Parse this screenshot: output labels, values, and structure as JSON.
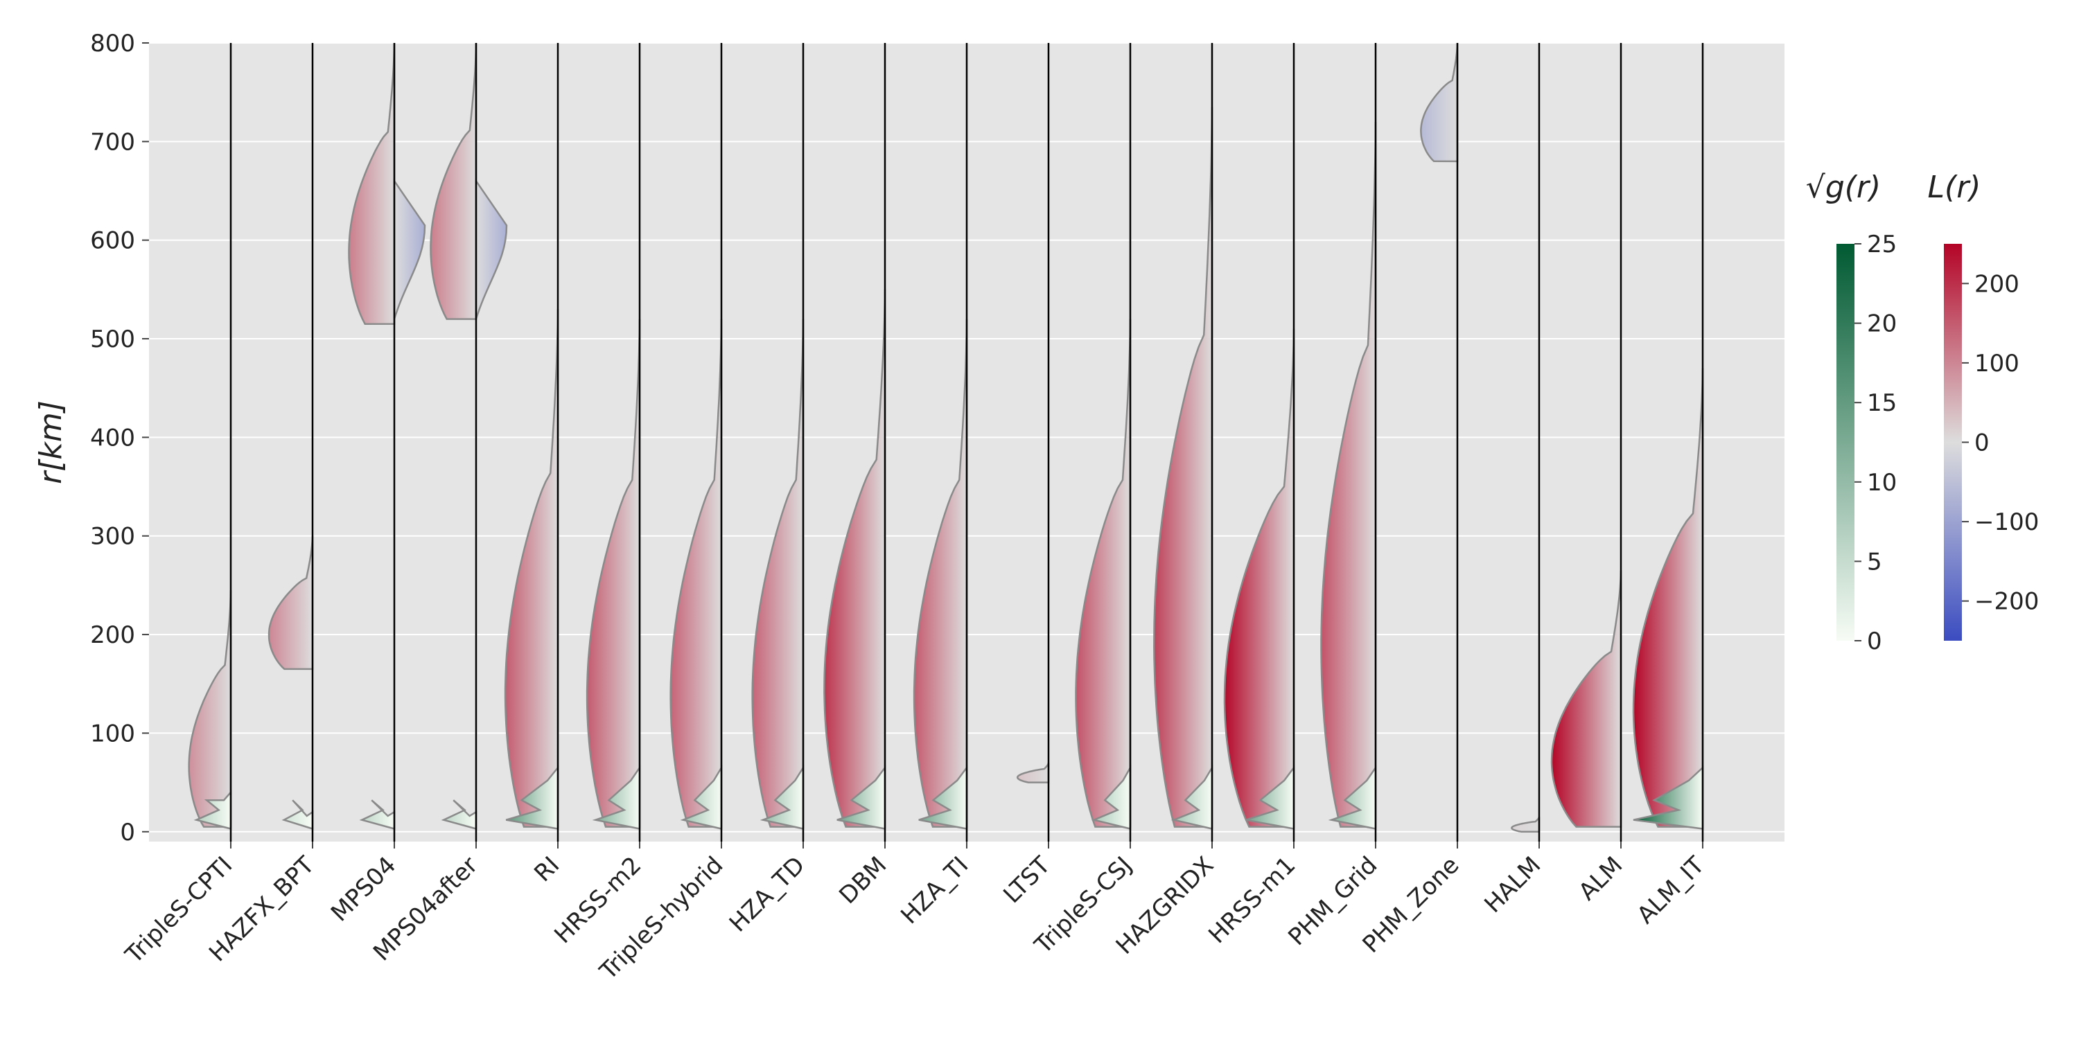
{
  "chart_data": {
    "type": "violin",
    "description_units": "r in km; each model shows a half-violin: right side L(r) colored coolwarm, left side sqrt(g(r)) colored greens",
    "ylabel": "r[km]",
    "ylim": [
      -10,
      800
    ],
    "yticks": [
      0,
      100,
      200,
      300,
      400,
      500,
      600,
      700,
      800
    ],
    "grid": true,
    "colorbars": [
      {
        "title": "√g(r)",
        "range": [
          0,
          25
        ],
        "ticks": [
          0,
          5,
          10,
          15,
          20,
          25
        ],
        "cmap": "Greens"
      },
      {
        "title": "L(r)",
        "range": [
          -250,
          250
        ],
        "ticks": [
          200,
          100,
          0,
          -100,
          -200
        ],
        "tick_labels": [
          "200",
          "100",
          "0",
          "−100",
          "−200"
        ],
        "cmap": "coolwarm"
      }
    ],
    "models": [
      {
        "name": "TripleS-CPTI",
        "L": {
          "rmin": 5,
          "rmax": 245,
          "peak": 90
        },
        "g": {
          "rmax": 40,
          "peak": 7
        }
      },
      {
        "name": "HAZFX_BPT",
        "L": {
          "rmin": 165,
          "rmax": 300,
          "peak": 100
        },
        "g": {
          "rmax": 20,
          "peak": 4
        }
      },
      {
        "name": "MPS04",
        "L": {
          "rmin": 515,
          "rmax": 800,
          "peak": 110,
          "negative_band": [
            520,
            640
          ]
        },
        "g": {
          "rmax": 20,
          "peak": 6
        }
      },
      {
        "name": "MPS04after",
        "L": {
          "rmin": 520,
          "rmax": 800,
          "peak": 110,
          "negative_band": [
            520,
            640
          ]
        },
        "g": {
          "rmax": 20,
          "peak": 6
        }
      },
      {
        "name": "RI",
        "L": {
          "rmin": 5,
          "rmax": 530,
          "peak": 150
        },
        "g": {
          "rmax": 65,
          "peak": 16
        }
      },
      {
        "name": "HRSS-m2",
        "L": {
          "rmin": 5,
          "rmax": 520,
          "peak": 150
        },
        "g": {
          "rmax": 65,
          "peak": 12
        }
      },
      {
        "name": "TripleS-hybrid",
        "L": {
          "rmin": 5,
          "rmax": 520,
          "peak": 140
        },
        "g": {
          "rmax": 65,
          "peak": 9
        }
      },
      {
        "name": "HZA_TD",
        "L": {
          "rmin": 5,
          "rmax": 520,
          "peak": 140
        },
        "g": {
          "rmax": 65,
          "peak": 10
        }
      },
      {
        "name": "DBM",
        "L": {
          "rmin": 5,
          "rmax": 550,
          "peak": 195
        },
        "g": {
          "rmax": 65,
          "peak": 14
        }
      },
      {
        "name": "HZA_TI",
        "L": {
          "rmin": 5,
          "rmax": 520,
          "peak": 150
        },
        "g": {
          "rmax": 65,
          "peak": 14
        }
      },
      {
        "name": "LTST",
        "L": {
          "rmin": 50,
          "rmax": 70,
          "peak": 30
        },
        "g": {
          "rmax": 0,
          "peak": 0
        }
      },
      {
        "name": "TripleS-CSJ",
        "L": {
          "rmin": 5,
          "rmax": 520,
          "peak": 160
        },
        "g": {
          "rmax": 65,
          "peak": 8
        }
      },
      {
        "name": "HAZGRIDX",
        "L": {
          "rmin": 5,
          "rmax": 735,
          "peak": 180
        },
        "g": {
          "rmax": 65,
          "peak": 9
        }
      },
      {
        "name": "HRSS-m1",
        "L": {
          "rmin": 5,
          "rmax": 510,
          "peak": 245
        },
        "g": {
          "rmax": 65,
          "peak": 14
        }
      },
      {
        "name": "PHM_Grid",
        "L": {
          "rmin": 5,
          "rmax": 720,
          "peak": 160
        },
        "g": {
          "rmax": 65,
          "peak": 12
        }
      },
      {
        "name": "PHM_Zone",
        "L": {
          "rmin": 680,
          "rmax": 800,
          "peak": -60
        },
        "g": {
          "rmax": 0,
          "peak": 0
        }
      },
      {
        "name": "HALM",
        "L": {
          "rmin": 0,
          "rmax": 15,
          "peak": 10
        },
        "g": {
          "rmax": 0,
          "peak": 0
        }
      },
      {
        "name": "ALM",
        "L": {
          "rmin": 5,
          "rmax": 265,
          "peak": 250
        },
        "g": {
          "rmax": 0,
          "peak": 0
        }
      },
      {
        "name": "ALM_IT",
        "L": {
          "rmin": 5,
          "rmax": 470,
          "peak": 250
        },
        "g": {
          "rmax": 65,
          "peak": 25
        }
      }
    ]
  }
}
